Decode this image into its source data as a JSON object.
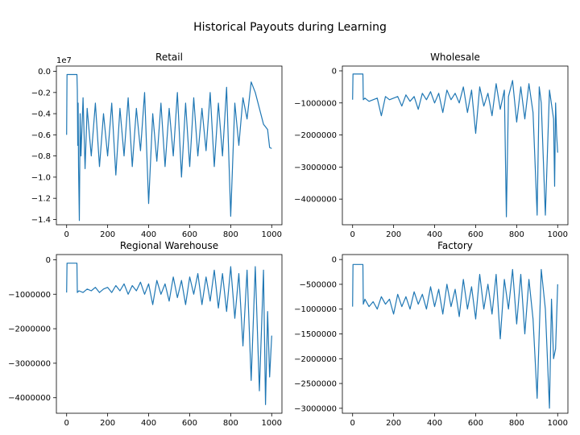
{
  "figure": {
    "title": "Historical Payouts during Learning",
    "line_color": "#1f77b4"
  },
  "chart_data": [
    {
      "type": "line",
      "title": "Retail",
      "offset_label": "1e7",
      "scale": 10000000,
      "xlim": [
        -50,
        1050
      ],
      "ylim": [
        -14500000,
        500000
      ],
      "xticks": [
        0,
        200,
        400,
        600,
        800,
        1000
      ],
      "xtick_labels": [
        "0",
        "200",
        "400",
        "600",
        "800",
        "1000"
      ],
      "yticks": [
        0,
        -2000000,
        -4000000,
        -6000000,
        -8000000,
        -10000000,
        -12000000,
        -14000000
      ],
      "ytick_labels": [
        "0.0",
        "−0.2",
        "−0.4",
        "−0.6",
        "−0.8",
        "−1.0",
        "−1.2",
        "−1.4"
      ],
      "series": [
        {
          "x": [
            0,
            2,
            4,
            50,
            52,
            54,
            56,
            58,
            62,
            66,
            70,
            80,
            90,
            100,
            120,
            140,
            160,
            180,
            200,
            220,
            240,
            260,
            280,
            300,
            320,
            340,
            360,
            380,
            400,
            420,
            440,
            460,
            480,
            500,
            520,
            540,
            560,
            580,
            600,
            620,
            640,
            660,
            680,
            700,
            720,
            740,
            760,
            780,
            800,
            820,
            840,
            860,
            880,
            900,
            920,
            940,
            960,
            980,
            990,
            1000
          ],
          "y": [
            -6000000,
            -300000,
            -300000,
            -300000,
            -1800000,
            -7000000,
            -3000000,
            -9000000,
            -14100000,
            -4000000,
            -8000000,
            -2500000,
            -9200000,
            -3500000,
            -8000000,
            -3000000,
            -9000000,
            -4000000,
            -8000000,
            -3000000,
            -9800000,
            -3500000,
            -8000000,
            -2500000,
            -9000000,
            -3500000,
            -7500000,
            -2000000,
            -12500000,
            -4000000,
            -8500000,
            -3000000,
            -9000000,
            -3500000,
            -8000000,
            -2000000,
            -10000000,
            -3000000,
            -9000000,
            -2500000,
            -8000000,
            -3500000,
            -7500000,
            -2000000,
            -9000000,
            -3000000,
            -8000000,
            -1500000,
            -13700000,
            -3000000,
            -7000000,
            -2500000,
            -4500000,
            -1000000,
            -2000000,
            -3500000,
            -5000000,
            -5500000,
            -7200000,
            -7300000
          ]
        }
      ]
    },
    {
      "type": "line",
      "title": "Wholesale",
      "offset_label": "",
      "scale": 1,
      "xlim": [
        -50,
        1050
      ],
      "ylim": [
        -4800000,
        150000
      ],
      "xticks": [
        0,
        200,
        400,
        600,
        800,
        1000
      ],
      "xtick_labels": [
        "0",
        "200",
        "400",
        "600",
        "800",
        "1000"
      ],
      "yticks": [
        0,
        -1000000,
        -2000000,
        -3000000,
        -4000000
      ],
      "ytick_labels": [
        "0",
        "−1000000",
        "−2000000",
        "−3000000",
        "−4000000"
      ],
      "series": [
        {
          "x": [
            0,
            2,
            50,
            52,
            60,
            80,
            100,
            120,
            140,
            160,
            180,
            200,
            220,
            240,
            260,
            280,
            300,
            320,
            340,
            360,
            380,
            400,
            420,
            440,
            460,
            480,
            500,
            520,
            540,
            560,
            580,
            600,
            620,
            640,
            660,
            680,
            700,
            720,
            740,
            750,
            760,
            780,
            800,
            820,
            840,
            860,
            880,
            900,
            910,
            920,
            940,
            960,
            980,
            985,
            990,
            995,
            1000
          ],
          "y": [
            -900000,
            -100000,
            -100000,
            -900000,
            -850000,
            -950000,
            -900000,
            -850000,
            -1400000,
            -800000,
            -900000,
            -850000,
            -800000,
            -1100000,
            -750000,
            -950000,
            -800000,
            -1200000,
            -700000,
            -900000,
            -650000,
            -1000000,
            -700000,
            -1300000,
            -600000,
            -900000,
            -700000,
            -1000000,
            -500000,
            -1300000,
            -600000,
            -1950000,
            -500000,
            -1100000,
            -700000,
            -1400000,
            -400000,
            -1200000,
            -600000,
            -4550000,
            -800000,
            -300000,
            -1600000,
            -500000,
            -1500000,
            -400000,
            -1300000,
            -4500000,
            -500000,
            -1000000,
            -4500000,
            -600000,
            -1500000,
            -3600000,
            -1000000,
            -2000000,
            -2550000
          ]
        }
      ]
    },
    {
      "type": "line",
      "title": "Regional Warehouse",
      "offset_label": "",
      "scale": 1,
      "xlim": [
        -50,
        1050
      ],
      "ylim": [
        -4450000,
        150000
      ],
      "xticks": [
        0,
        200,
        400,
        600,
        800,
        1000
      ],
      "xtick_labels": [
        "0",
        "200",
        "400",
        "600",
        "800",
        "1000"
      ],
      "yticks": [
        0,
        -1000000,
        -2000000,
        -3000000,
        -4000000
      ],
      "ytick_labels": [
        "0",
        "−1000000",
        "−2000000",
        "−3000000",
        "−4000000"
      ],
      "series": [
        {
          "x": [
            0,
            2,
            50,
            52,
            60,
            80,
            100,
            120,
            140,
            160,
            180,
            200,
            220,
            240,
            260,
            280,
            300,
            320,
            340,
            360,
            380,
            400,
            420,
            440,
            460,
            480,
            500,
            520,
            540,
            560,
            580,
            600,
            620,
            640,
            660,
            680,
            700,
            720,
            740,
            760,
            780,
            800,
            820,
            840,
            860,
            880,
            900,
            920,
            940,
            960,
            970,
            980,
            990,
            1000
          ],
          "y": [
            -950000,
            -100000,
            -100000,
            -950000,
            -900000,
            -950000,
            -850000,
            -900000,
            -800000,
            -950000,
            -850000,
            -800000,
            -950000,
            -750000,
            -900000,
            -700000,
            -1000000,
            -750000,
            -900000,
            -650000,
            -1000000,
            -700000,
            -1300000,
            -600000,
            -1000000,
            -700000,
            -1200000,
            -500000,
            -1100000,
            -600000,
            -1300000,
            -500000,
            -1000000,
            -400000,
            -1300000,
            -500000,
            -1200000,
            -300000,
            -1400000,
            -400000,
            -1500000,
            -200000,
            -1700000,
            -400000,
            -2500000,
            -300000,
            -3500000,
            -200000,
            -3800000,
            -300000,
            -4200000,
            -1500000,
            -3400000,
            -2200000
          ]
        }
      ]
    },
    {
      "type": "line",
      "title": "Factory",
      "offset_label": "",
      "scale": 1,
      "xlim": [
        -50,
        1050
      ],
      "ylim": [
        -3100000,
        100000
      ],
      "xticks": [
        0,
        200,
        400,
        600,
        800,
        1000
      ],
      "xtick_labels": [
        "0",
        "200",
        "400",
        "600",
        "800",
        "1000"
      ],
      "yticks": [
        0,
        -500000,
        -1000000,
        -1500000,
        -2000000,
        -2500000,
        -3000000
      ],
      "ytick_labels": [
        "0",
        "−500000",
        "−1000000",
        "−1500000",
        "−2000000",
        "−2500000",
        "−3000000"
      ],
      "series": [
        {
          "x": [
            0,
            2,
            50,
            52,
            60,
            80,
            100,
            120,
            140,
            160,
            180,
            200,
            220,
            240,
            260,
            280,
            300,
            320,
            340,
            360,
            380,
            400,
            420,
            440,
            460,
            480,
            500,
            520,
            540,
            560,
            580,
            600,
            620,
            640,
            660,
            680,
            700,
            720,
            740,
            760,
            780,
            800,
            820,
            840,
            860,
            880,
            900,
            920,
            940,
            960,
            970,
            980,
            990,
            1000
          ],
          "y": [
            -950000,
            -100000,
            -100000,
            -900000,
            -800000,
            -950000,
            -850000,
            -1000000,
            -750000,
            -900000,
            -800000,
            -1100000,
            -700000,
            -950000,
            -750000,
            -1000000,
            -650000,
            -900000,
            -700000,
            -1000000,
            -550000,
            -950000,
            -600000,
            -1100000,
            -500000,
            -950000,
            -600000,
            -1150000,
            -400000,
            -1000000,
            -550000,
            -1200000,
            -300000,
            -1000000,
            -500000,
            -1100000,
            -300000,
            -1600000,
            -400000,
            -1000000,
            -200000,
            -1300000,
            -300000,
            -1500000,
            -400000,
            -1200000,
            -2800000,
            -200000,
            -1000000,
            -3000000,
            -800000,
            -2000000,
            -1800000,
            -500000
          ]
        }
      ]
    }
  ]
}
